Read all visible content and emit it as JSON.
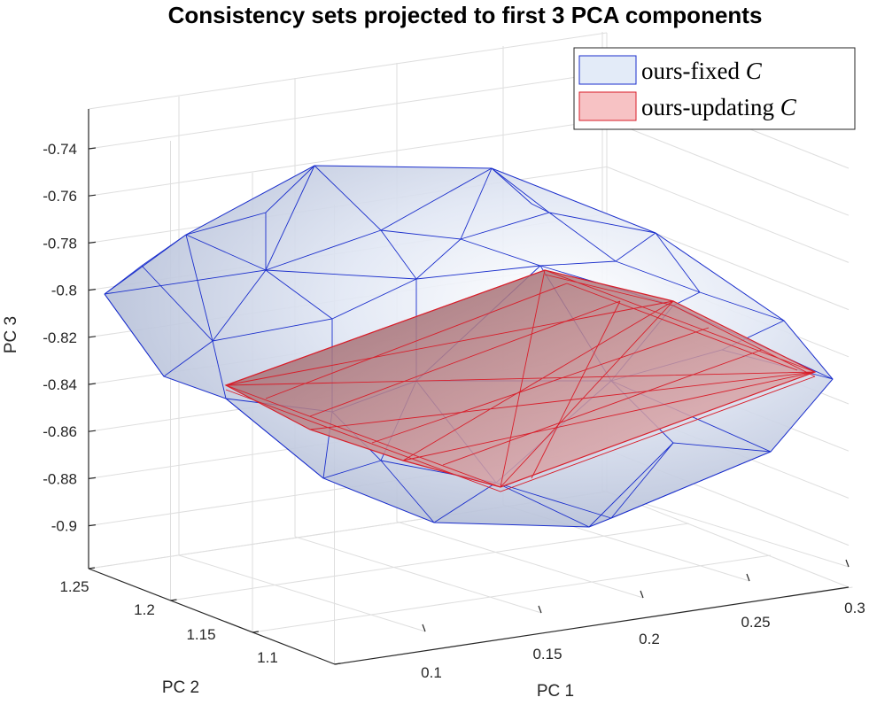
{
  "chart_data": {
    "type": "3d-surface",
    "title": "Consistency sets projected to first 3 PCA components",
    "xlabel": "PC 1",
    "ylabel": "PC 2",
    "zlabel": "PC 3",
    "xticks": [
      "0.1",
      "0.15",
      "0.2",
      "0.25",
      "0.3"
    ],
    "yticks": [
      "1.25",
      "1.2",
      "1.15",
      "1.1"
    ],
    "zticks": [
      "-0.74",
      "-0.76",
      "-0.78",
      "-0.8",
      "-0.82",
      "-0.84",
      "-0.86",
      "-0.88",
      "-0.9"
    ],
    "legend_position": "top-right",
    "series": [
      {
        "name": "ours-fixed",
        "symbol": "C",
        "face_color": "#e3ebf8",
        "edge_color": "#1a2ecc"
      },
      {
        "name": "ours-updating",
        "symbol": "C",
        "face_color": "#f7c2c4",
        "edge_color": "#d81e2a"
      }
    ]
  }
}
